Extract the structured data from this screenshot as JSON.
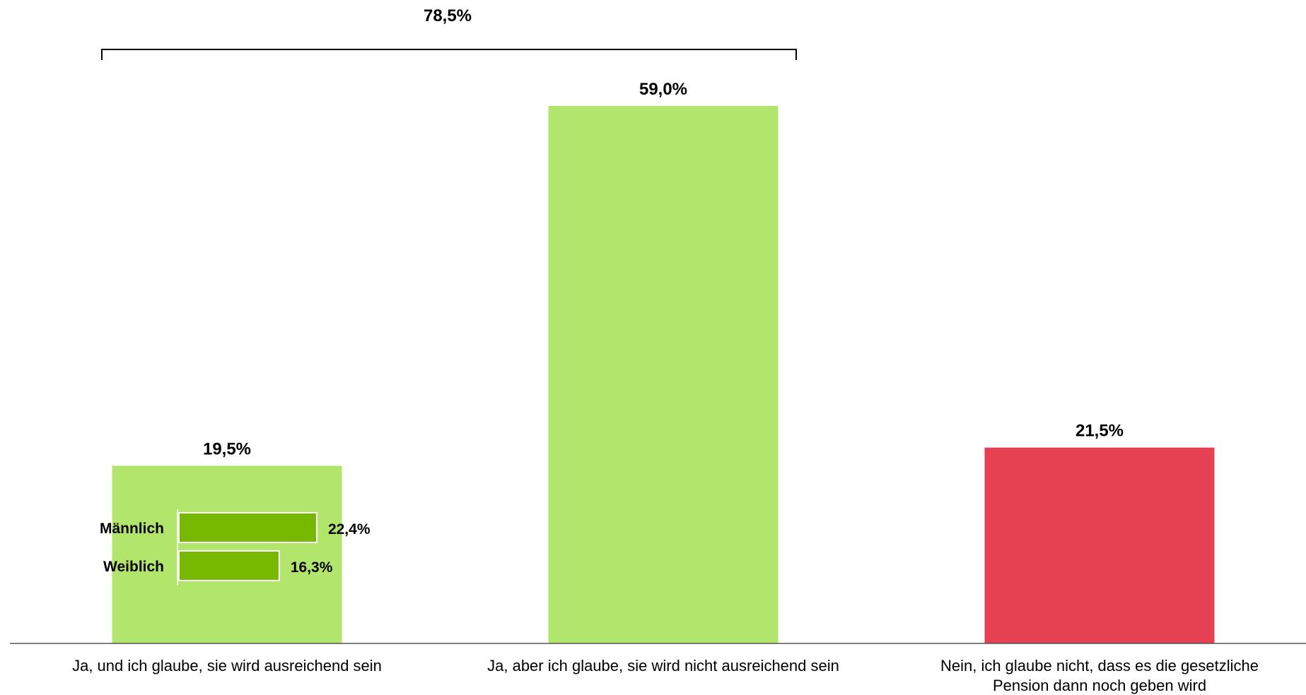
{
  "chart_data": {
    "type": "bar",
    "categories": [
      [
        "Ja, und ich glaube, sie wird ausreichend sein"
      ],
      [
        "Ja, aber ich glaube, sie wird nicht ausreichend sein"
      ],
      [
        "Nein, ich glaube nicht, dass es die gesetzliche",
        "Pension dann noch geben wird"
      ]
    ],
    "values": [
      19.5,
      59.0,
      21.5
    ],
    "value_labels": [
      "19,5%",
      "59,0%",
      "21,5%"
    ],
    "colors": [
      "#b2e56b",
      "#b2e56b",
      "#e64152"
    ],
    "ylim": [
      0,
      60
    ],
    "grid": false,
    "bracket": {
      "categories": [
        0,
        1
      ],
      "label": "78,5%"
    },
    "inset": {
      "type": "bar-horizontal",
      "parent_category": 0,
      "categories": [
        "Männlich",
        "Weiblich"
      ],
      "values": [
        22.4,
        16.3
      ],
      "value_labels": [
        "22,4%",
        "16,3%"
      ],
      "color": "#77b800",
      "xlim": [
        0,
        27
      ]
    }
  }
}
